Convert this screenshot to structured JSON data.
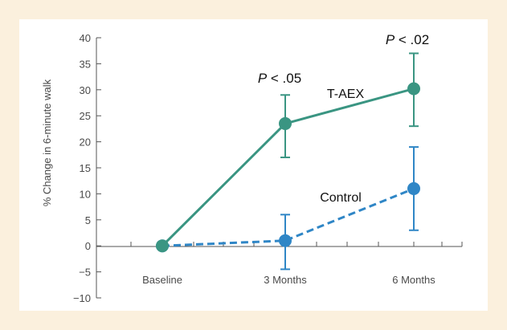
{
  "chart_data": {
    "type": "line",
    "ylabel": "% Change in 6-minute walk",
    "ylim": [
      -10,
      40
    ],
    "yticks": [
      "40",
      "35",
      "30",
      "25",
      "20",
      "15",
      "10",
      "5",
      "0",
      "−5",
      "−10"
    ],
    "categories": [
      "Baseline",
      "3 Months",
      "6 Months"
    ],
    "grid": false,
    "series": [
      {
        "name": "T-AEX",
        "values": [
          0,
          23.5,
          30.2
        ],
        "err_low": [
          0,
          17,
          23
        ],
        "err_high": [
          0,
          29,
          37
        ],
        "color": "#3a9582",
        "dash": "solid"
      },
      {
        "name": "Control",
        "values": [
          0,
          1,
          11
        ],
        "err_low": [
          0,
          -4.5,
          3
        ],
        "err_high": [
          0,
          6,
          19
        ],
        "color": "#2f86c6",
        "dash": "dashed"
      }
    ],
    "annotations": [
      {
        "italic": "P",
        "rest": " < .05",
        "category": "3 Months"
      },
      {
        "italic": "P",
        "rest": " < .02",
        "category": "6 Months"
      }
    ]
  },
  "colors": {
    "background": "#fbf0dd",
    "panel": "#ffffff"
  }
}
